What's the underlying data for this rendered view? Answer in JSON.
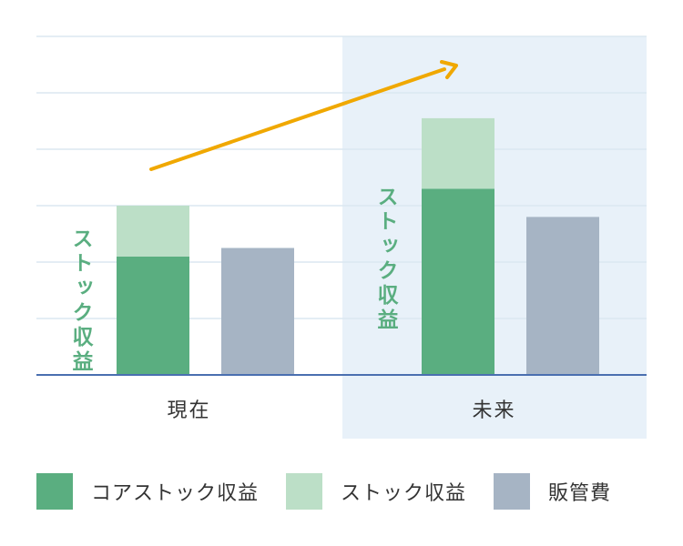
{
  "chart_data": {
    "type": "bar",
    "categories": [
      "現在",
      "未来"
    ],
    "series": [
      {
        "name": "コアストック収益",
        "values": [
          21,
          33
        ]
      },
      {
        "name": "ストック収益",
        "values": [
          9,
          12.5
        ]
      },
      {
        "name": "販管費",
        "values": [
          22.5,
          28
        ]
      }
    ],
    "stacked_series": [
      "コアストック収益",
      "ストック収益"
    ],
    "ylim": [
      0,
      60
    ],
    "grid": true,
    "legend_position": "bottom",
    "annotations": [
      {
        "text": "ストック収益",
        "category": "現在"
      },
      {
        "text": "ストック収益",
        "category": "未来"
      }
    ],
    "highlight_category": "未来",
    "trend_arrow": true,
    "colors": {
      "コアストック収益": "#5aae80",
      "ストック収益": "#bcdfc7",
      "販管費": "#a6b4c4",
      "annotation_text": "#5aae80",
      "arrow": "#f0a800",
      "highlight_bg": "#e8f1f9",
      "grid": "#dbe7f1",
      "baseline": "#4a6fb0",
      "category_text": "#333333"
    }
  }
}
